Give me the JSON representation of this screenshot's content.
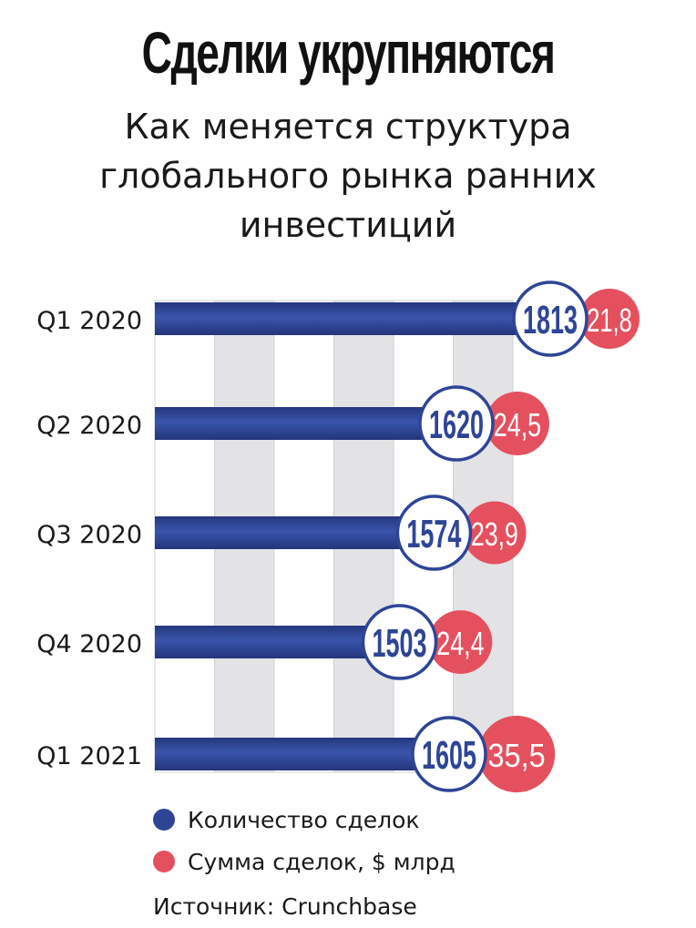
{
  "chart_data": {
    "type": "bar",
    "orientation": "horizontal",
    "title": "Сделки укрупняются",
    "subtitle": "Как меняется структура глобального рынка ранних инвестиций",
    "categories": [
      "Q1 2020",
      "Q2 2020",
      "Q3 2020",
      "Q4 2020",
      "Q1 2021"
    ],
    "series": [
      {
        "name": "Количество сделок",
        "values": [
          1813,
          1620,
          1574,
          1503,
          1605
        ],
        "labels": [
          "1813",
          "1620",
          "1574",
          "1503",
          "1605"
        ],
        "color": "#2e4596"
      },
      {
        "name": "Сумма сделок, $ млрд",
        "values": [
          21.8,
          24.5,
          23.9,
          24.4,
          35.5
        ],
        "labels": [
          "21,8",
          "24,5",
          "23,9",
          "24,4",
          "35,5"
        ],
        "color": "#e5505f"
      }
    ],
    "legend_position": "bottom-left",
    "grid": false
  },
  "legend": {
    "count_label": "Количество сделок",
    "sum_label": "Сумма сделок, $ млрд"
  },
  "source": "Источник: Crunchbase",
  "colors": {
    "bar": "#2e4596",
    "bubble": "#e5505f",
    "stripe": "#e3e3e6"
  }
}
